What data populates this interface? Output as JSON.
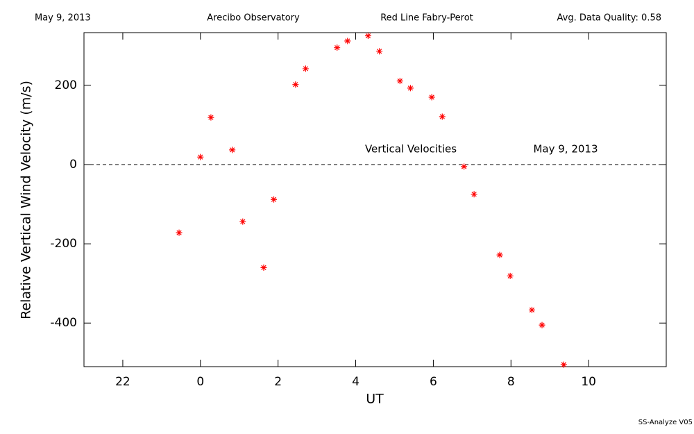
{
  "chart_data": {
    "type": "scatter",
    "header": [
      "May 9, 2013",
      "Arecibo Observatory",
      "Red Line Fabry-Perot",
      "Avg. Data Quality: 0.58"
    ],
    "xlabel": "UT",
    "ylabel": "Relative Vertical Wind Velocity (m/s)",
    "annotations": [
      "Vertical Velocities",
      "May 9, 2013"
    ],
    "footer": "SS-Analyze V05",
    "reference_line": 0,
    "xlim": [
      -3,
      12
    ],
    "ylim": [
      -510,
      333
    ],
    "xticks": [
      {
        "value": -2,
        "label": "22"
      },
      0,
      2,
      4,
      6,
      8,
      10
    ],
    "yticks": [
      -400,
      -200,
      0,
      200
    ],
    "series": [
      {
        "color": "#ff0000",
        "x": [
          -0.55,
          0.0,
          0.27,
          0.82,
          1.09,
          1.63,
          1.89,
          2.45,
          2.71,
          3.52,
          3.79,
          4.32,
          4.61,
          5.14,
          5.41,
          5.96,
          6.23,
          6.79,
          7.05,
          7.71,
          7.98,
          8.54,
          8.8,
          9.36
        ],
        "values": [
          -172,
          19,
          119,
          37,
          -144,
          -260,
          -88,
          202,
          242,
          295,
          312,
          325,
          286,
          211,
          193,
          170,
          121,
          -5,
          -75,
          -228,
          -281,
          -367,
          -405,
          -505
        ]
      }
    ]
  }
}
